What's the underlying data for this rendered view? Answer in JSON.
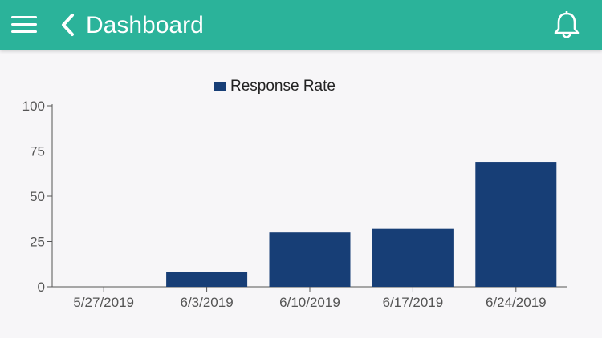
{
  "header": {
    "title": "Dashboard",
    "menu_icon": "hamburger-menu-icon",
    "back_icon": "chevron-left-icon",
    "notification_icon": "bell-icon",
    "background_color": "#2bb39a"
  },
  "chart_data": {
    "type": "bar",
    "categories": [
      "5/27/2019",
      "6/3/2019",
      "6/10/2019",
      "6/17/2019",
      "6/24/2019"
    ],
    "series": [
      {
        "name": "Response Rate",
        "values": [
          0,
          8,
          30,
          32,
          69
        ],
        "color": "#173e76"
      }
    ],
    "yticks": [
      "0",
      "25",
      "50",
      "75",
      "100"
    ],
    "ylim": [
      0,
      100
    ],
    "legend_position": "top-center",
    "grid": false
  }
}
